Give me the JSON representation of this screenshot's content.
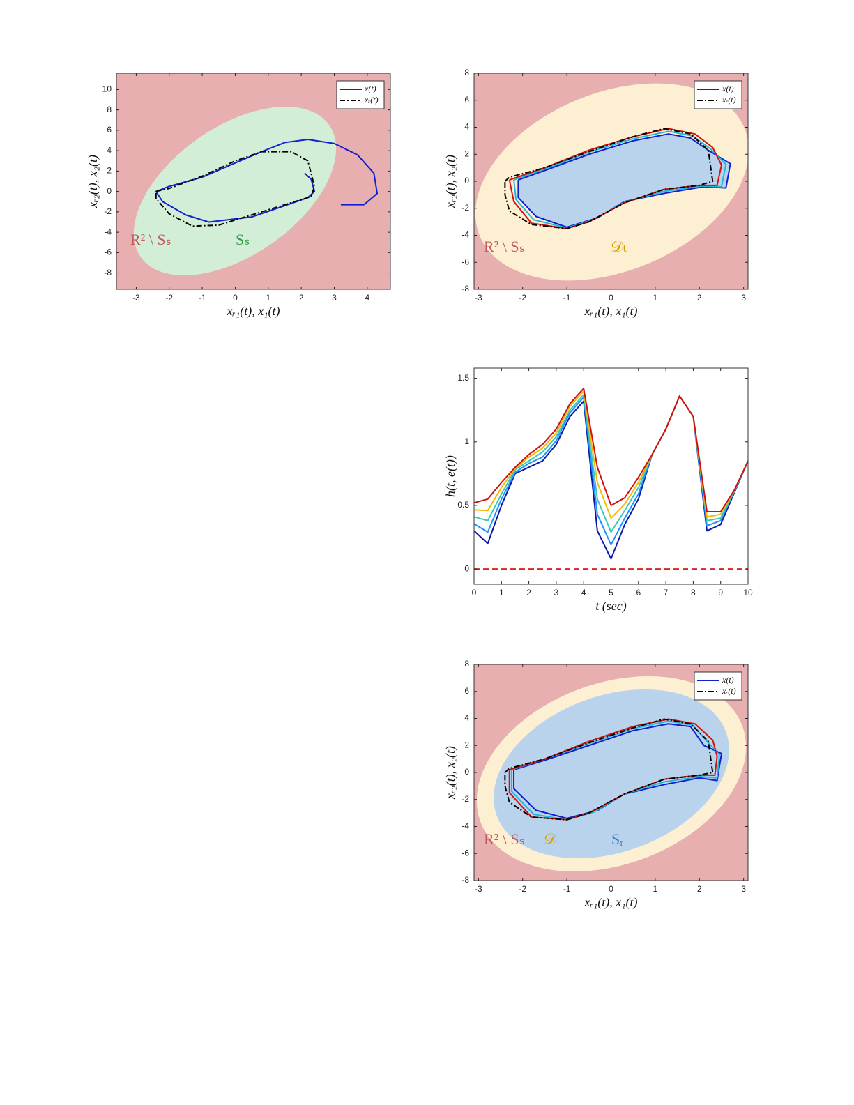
{
  "chart_data": [
    {
      "type": "line",
      "background": "#e8afb1",
      "xlabel": "xᵣ₁(t),  x₁(t)",
      "ylabel": "xᵣ₂(t),  x₂(t)",
      "xlim": [
        -3.6,
        4.7
      ],
      "xticks": [
        -3,
        -2,
        -1,
        0,
        1,
        2,
        3,
        4
      ],
      "ylim": [
        -9.6,
        11.6
      ],
      "yticks": [
        -8,
        -6,
        -4,
        -2,
        0,
        2,
        4,
        6,
        8,
        10
      ],
      "legend": "upper right",
      "annotations": [
        {
          "text": "R² \\ Sₛ",
          "color": "#c0595f"
        },
        {
          "text": "Sₛ",
          "color": "#3a9a4a"
        }
      ],
      "series": [
        {
          "name": "x(t)",
          "color": "#1020d0",
          "style": "solid",
          "x": [
            3.2,
            3.9,
            4.3,
            4.2,
            3.7,
            3.0,
            2.2,
            1.5,
            0.8,
            0.0,
            -1.0,
            -2.0,
            -2.4,
            -2.2,
            -1.5,
            -0.8,
            0.5,
            1.5,
            2.2,
            2.4,
            2.3,
            2.1
          ],
          "values": [
            -1.3,
            -1.3,
            -0.2,
            1.8,
            3.6,
            4.7,
            5.1,
            4.8,
            3.9,
            2.8,
            1.4,
            0.5,
            0.0,
            -1.0,
            -2.3,
            -3.0,
            -2.5,
            -1.4,
            -0.6,
            0.0,
            1.2,
            1.8
          ]
        },
        {
          "name": "xᵣ(t)",
          "color": "#000000",
          "style": "dashdot",
          "x": [
            -2.4,
            -2.0,
            -1.0,
            0.0,
            0.8,
            1.7,
            2.2,
            2.4,
            2.3,
            1.5,
            0.5,
            -0.5,
            -1.3,
            -2.0,
            -2.4,
            -2.4
          ],
          "values": [
            0.0,
            0.3,
            1.5,
            3.0,
            3.9,
            3.9,
            3.0,
            0.5,
            -0.5,
            -1.3,
            -2.3,
            -3.3,
            -3.4,
            -2.2,
            -0.7,
            0.0
          ]
        }
      ]
    },
    {
      "type": "line",
      "background": "#e8afb1",
      "xlabel": "xᵣ₁(t),  x₁(t)",
      "ylabel": "xᵣ₂(t),  x₂(t)",
      "xlim": [
        -3.1,
        3.1
      ],
      "xticks": [
        -3,
        -2,
        -1,
        0,
        1,
        2,
        3
      ],
      "ylim": [
        -8,
        8
      ],
      "yticks": [
        -8,
        -6,
        -4,
        -2,
        0,
        2,
        4,
        6,
        8
      ],
      "legend": "upper right",
      "annotations": [
        {
          "text": "R² \\ Sₛ",
          "color": "#c0595f"
        },
        {
          "text": "𝒟ₜ",
          "color": "#d4a000"
        }
      ],
      "series": [
        {
          "name": "x(t)",
          "color": "#1020d0",
          "style": "solid",
          "fill": "#b9d3ec",
          "x": [
            -2.1,
            -1.5,
            -0.5,
            0.5,
            1.3,
            1.8,
            2.2,
            2.7,
            2.6,
            2.1,
            1.2,
            0.3,
            -0.3,
            -1.0,
            -1.7,
            -2.1,
            -2.1
          ],
          "values": [
            0.1,
            0.8,
            2.0,
            3.0,
            3.5,
            3.2,
            2.3,
            1.3,
            -0.5,
            -0.4,
            -0.9,
            -1.5,
            -2.7,
            -3.4,
            -2.6,
            -1.2,
            0.1
          ]
        },
        {
          "color": "#20b8d8",
          "style": "solid",
          "x": [
            -2.2,
            -1.5,
            -0.5,
            0.5,
            1.3,
            1.85,
            2.25,
            2.6,
            2.5,
            2.05,
            1.2,
            0.3,
            -0.4,
            -1.0,
            -1.75,
            -2.15,
            -2.2
          ],
          "values": [
            0.1,
            0.9,
            2.15,
            3.15,
            3.7,
            3.35,
            2.4,
            1.25,
            -0.4,
            -0.35,
            -0.75,
            -1.55,
            -2.85,
            -3.45,
            -2.85,
            -1.35,
            0.1
          ]
        },
        {
          "color": "#d41010",
          "style": "solid",
          "x": [
            -2.3,
            -1.5,
            -0.5,
            0.5,
            1.3,
            1.9,
            2.3,
            2.5,
            2.4,
            2.0,
            1.2,
            0.3,
            -0.5,
            -1.0,
            -1.8,
            -2.2,
            -2.3
          ],
          "values": [
            0.1,
            1.0,
            2.3,
            3.3,
            3.9,
            3.5,
            2.5,
            1.2,
            -0.3,
            -0.3,
            -0.6,
            -1.6,
            -3.0,
            -3.5,
            -3.1,
            -1.5,
            0.1
          ]
        },
        {
          "name": "xᵣ(t)",
          "color": "#000000",
          "style": "dashdot",
          "x": [
            -2.4,
            -2.3,
            -1.5,
            -0.5,
            0.5,
            1.2,
            1.8,
            2.2,
            2.3,
            2.0,
            1.2,
            0.3,
            -0.5,
            -1.0,
            -1.8,
            -2.3,
            -2.4,
            -2.4
          ],
          "values": [
            0.0,
            0.3,
            1.0,
            2.2,
            3.3,
            3.9,
            3.5,
            2.3,
            0.0,
            -0.3,
            -0.6,
            -1.6,
            -3.0,
            -3.5,
            -3.2,
            -2.2,
            -1.0,
            0.0
          ]
        }
      ]
    },
    {
      "type": "line",
      "background": "#ffffff",
      "xlabel": "t (sec)",
      "ylabel": "h(t, e(t))",
      "xlim": [
        0,
        10
      ],
      "xticks": [
        0,
        1,
        2,
        3,
        4,
        5,
        6,
        7,
        8,
        9,
        10
      ],
      "ylim": [
        -0.12,
        1.58
      ],
      "yticks": [
        0,
        0.5,
        1,
        1.5
      ],
      "hline": {
        "value": 0,
        "color": "#e02020"
      },
      "x": [
        0,
        0.5,
        1,
        1.5,
        2,
        2.5,
        3,
        3.5,
        4,
        4.5,
        5,
        5.5,
        6,
        6.5,
        7,
        7.5,
        8,
        8.5,
        9,
        9.5,
        10
      ],
      "series": [
        {
          "color": "#0a1aa8",
          "values": [
            0.3,
            0.2,
            0.5,
            0.75,
            0.8,
            0.85,
            0.98,
            1.2,
            1.32,
            0.3,
            0.08,
            0.35,
            0.55,
            0.9,
            1.1,
            1.36,
            1.2,
            0.3,
            0.35,
            0.6,
            0.85
          ]
        },
        {
          "color": "#1e90ff",
          "values": [
            0.355,
            0.29,
            0.55,
            0.76,
            0.83,
            0.88,
            1.01,
            1.23,
            1.35,
            0.43,
            0.19,
            0.4,
            0.59,
            0.9,
            1.1,
            1.36,
            1.2,
            0.34,
            0.38,
            0.61,
            0.85
          ]
        },
        {
          "color": "#3cc8b4",
          "values": [
            0.41,
            0.38,
            0.59,
            0.78,
            0.85,
            0.92,
            1.04,
            1.25,
            1.37,
            0.55,
            0.29,
            0.46,
            0.64,
            0.9,
            1.1,
            1.36,
            1.2,
            0.38,
            0.4,
            0.61,
            0.85
          ]
        },
        {
          "color": "#f5b800",
          "values": [
            0.465,
            0.46,
            0.64,
            0.79,
            0.88,
            0.95,
            1.07,
            1.28,
            1.4,
            0.68,
            0.4,
            0.51,
            0.68,
            0.9,
            1.1,
            1.36,
            1.2,
            0.41,
            0.43,
            0.62,
            0.85
          ]
        },
        {
          "color": "#d01010",
          "values": [
            0.52,
            0.55,
            0.68,
            0.8,
            0.9,
            0.98,
            1.1,
            1.3,
            1.42,
            0.8,
            0.5,
            0.56,
            0.72,
            0.9,
            1.1,
            1.36,
            1.2,
            0.45,
            0.45,
            0.62,
            0.85
          ]
        }
      ]
    },
    {
      "type": "line",
      "background": "#e8afb1",
      "xlabel": "xᵣ₁(t),  x₁(t)",
      "ylabel": "xᵣ₂(t),  x₂(t)",
      "xlim": [
        -3.1,
        3.1
      ],
      "xticks": [
        -3,
        -2,
        -1,
        0,
        1,
        2,
        3
      ],
      "ylim": [
        -8,
        8
      ],
      "yticks": [
        -8,
        -6,
        -4,
        -2,
        0,
        2,
        4,
        6,
        8
      ],
      "legend": "upper right",
      "annotations": [
        {
          "text": "R² \\ Sₛ",
          "color": "#c0595f"
        },
        {
          "text": "𝒟",
          "color": "#d4a000"
        },
        {
          "text": "Sᵣ",
          "color": "#3a78c0"
        }
      ],
      "series": [
        {
          "name": "x(t)",
          "color": "#1020d0",
          "style": "solid",
          "x": [
            -2.2,
            -1.5,
            -0.5,
            0.5,
            1.3,
            1.8,
            2.1,
            2.5,
            2.4,
            2.0,
            1.2,
            0.3,
            -0.3,
            -1.0,
            -1.7,
            -2.2,
            -2.2
          ],
          "values": [
            0.2,
            0.9,
            2.0,
            3.1,
            3.6,
            3.4,
            2.0,
            1.4,
            -0.6,
            -0.4,
            -0.9,
            -1.6,
            -2.8,
            -3.4,
            -2.8,
            -1.2,
            0.2
          ]
        },
        {
          "color": "#20b8d8",
          "style": "solid",
          "x": [
            -2.25,
            -1.5,
            -0.5,
            0.5,
            1.3,
            1.85,
            2.2,
            2.45,
            2.4,
            2.0,
            1.2,
            0.3,
            -0.4,
            -1.0,
            -1.75,
            -2.25,
            -2.25
          ],
          "values": [
            0.2,
            1.0,
            2.15,
            3.25,
            3.8,
            3.5,
            2.2,
            1.3,
            -0.4,
            -0.3,
            -0.7,
            -1.6,
            -2.95,
            -3.5,
            -3.1,
            -1.4,
            0.2
          ]
        },
        {
          "color": "#d41010",
          "style": "solid",
          "x": [
            -2.3,
            -1.5,
            -0.5,
            0.5,
            1.3,
            1.9,
            2.3,
            2.4,
            2.35,
            2.0,
            1.2,
            0.3,
            -0.5,
            -1.0,
            -1.8,
            -2.3,
            -2.3
          ],
          "values": [
            0.2,
            1.0,
            2.3,
            3.4,
            3.95,
            3.6,
            2.4,
            1.2,
            -0.2,
            -0.2,
            -0.5,
            -1.6,
            -3.0,
            -3.5,
            -3.3,
            -1.5,
            0.2
          ]
        },
        {
          "name": "xᵣ(t)",
          "color": "#000000",
          "style": "dashdot",
          "x": [
            -2.4,
            -2.3,
            -1.5,
            -0.5,
            0.5,
            1.2,
            1.8,
            2.2,
            2.3,
            2.0,
            1.2,
            0.3,
            -0.5,
            -1.0,
            -1.8,
            -2.3,
            -2.4,
            -2.4
          ],
          "values": [
            0.0,
            0.3,
            1.0,
            2.2,
            3.3,
            3.95,
            3.6,
            2.3,
            0.0,
            -0.2,
            -0.5,
            -1.6,
            -3.0,
            -3.5,
            -3.3,
            -2.2,
            -1.0,
            0.0
          ]
        }
      ]
    }
  ]
}
